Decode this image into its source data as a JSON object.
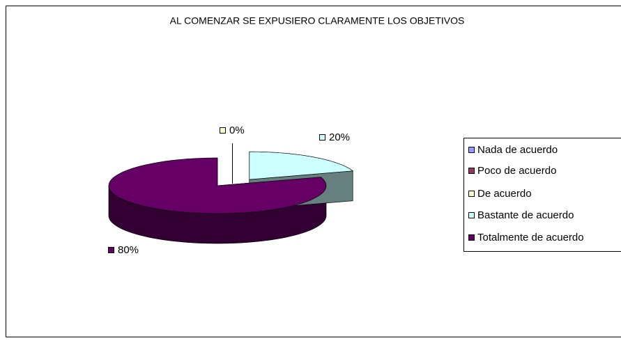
{
  "chart_data": {
    "type": "pie3d",
    "title": "AL COMENZAR SE EXPUSIERO CLARAMENTE LOS OBJETIVOS",
    "categories": [
      "Nada de acuerdo",
      "Poco de acuerdo",
      "De acuerdo",
      "Bastante de acuerdo",
      "Totalmente de acuerdo"
    ],
    "values": [
      0,
      0,
      0,
      20,
      80
    ],
    "value_labels": [
      null,
      null,
      "0%",
      "20%",
      "80%"
    ],
    "colors": [
      "#9999ff",
      "#993366",
      "#ffffcc",
      "#ccffff",
      "#660066"
    ],
    "legend": "right"
  }
}
